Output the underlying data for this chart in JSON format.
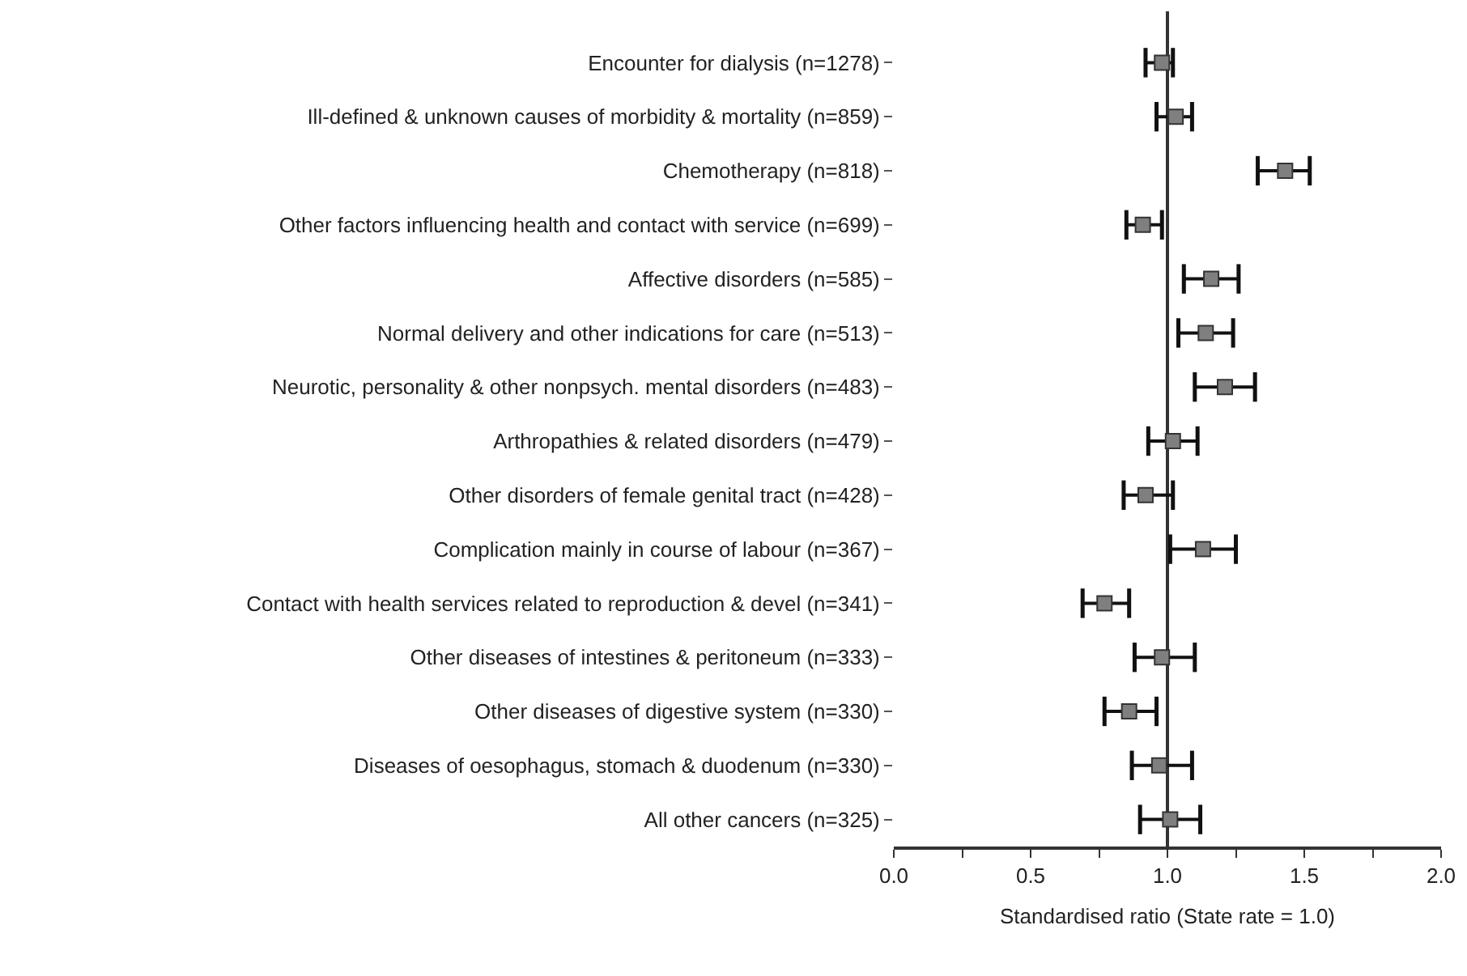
{
  "chart_data": {
    "type": "scatter",
    "xlabel": "Standardised ratio (State rate = 1.0)",
    "categories": [
      "Encounter for dialysis (n=1278)",
      "Ill-defined & unknown causes of morbidity & mortality (n=859)",
      "Chemotherapy (n=818)",
      "Other factors influencing health and contact with service (n=699)",
      "Affective disorders (n=585)",
      "Normal delivery and other indications for care (n=513)",
      "Neurotic, personality & other nonpsych. mental disorders (n=483)",
      "Arthropathies & related disorders (n=479)",
      "Other disorders of female genital tract (n=428)",
      "Complication mainly in course of labour (n=367)",
      "Contact with health services related to reproduction & devel (n=341)",
      "Other diseases of intestines & peritoneum (n=333)",
      "Other diseases of digestive system (n=330)",
      "Diseases of oesophagus, stomach & duodenum (n=330)",
      "All other cancers (n=325)"
    ],
    "orientation": "horizontal",
    "values": [
      0.98,
      1.03,
      1.43,
      0.91,
      1.16,
      1.14,
      1.21,
      1.02,
      0.92,
      1.13,
      0.77,
      0.98,
      0.86,
      0.97,
      1.01
    ],
    "errors": [
      [
        0.92,
        1.02
      ],
      [
        0.96,
        1.09
      ],
      [
        1.33,
        1.52
      ],
      [
        0.85,
        0.98
      ],
      [
        1.06,
        1.26
      ],
      [
        1.04,
        1.24
      ],
      [
        1.1,
        1.32
      ],
      [
        0.93,
        1.11
      ],
      [
        0.84,
        1.02
      ],
      [
        1.01,
        1.25
      ],
      [
        0.69,
        0.86
      ],
      [
        0.88,
        1.1
      ],
      [
        0.77,
        0.96
      ],
      [
        0.87,
        1.09
      ],
      [
        0.9,
        1.12
      ]
    ],
    "color": "#7f7f7f",
    "marker": "square",
    "grid": false,
    "xlim": [
      0,
      2
    ],
    "xticks": [
      {
        "value": 0,
        "label": "0.0"
      },
      {
        "value": 0.25,
        "label": null
      },
      {
        "value": 0.5,
        "label": "0.5"
      },
      {
        "value": 0.75,
        "label": null
      },
      {
        "value": 1,
        "label": "1.0"
      },
      {
        "value": 1.25,
        "label": null
      },
      {
        "value": 1.5,
        "label": "1.5"
      },
      {
        "value": 1.75,
        "label": null
      },
      {
        "value": 2,
        "label": "2.0"
      }
    ],
    "ref_lines": [
      {
        "axis": "x",
        "value": 1,
        "label": null,
        "color": "#333333",
        "line_style": "solid"
      }
    ]
  }
}
